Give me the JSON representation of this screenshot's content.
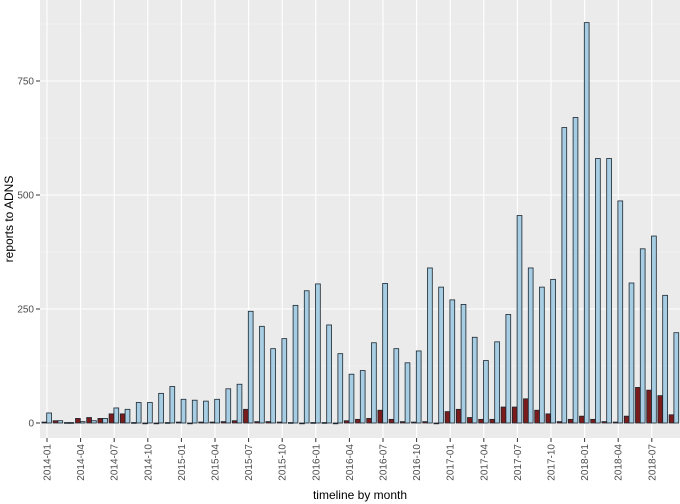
{
  "chart_data": {
    "type": "bar",
    "title": "",
    "xlabel": "timeline by month",
    "ylabel": "reports to ADNS",
    "ylim": [
      0,
      900
    ],
    "yticks": [
      0,
      250,
      500,
      750
    ],
    "grid": true,
    "legend": "none",
    "categories": [
      "2014-01",
      "2014-02",
      "2014-03",
      "2014-04",
      "2014-05",
      "2014-06",
      "2014-07",
      "2014-08",
      "2014-09",
      "2014-10",
      "2014-11",
      "2014-12",
      "2015-01",
      "2015-02",
      "2015-03",
      "2015-04",
      "2015-05",
      "2015-06",
      "2015-07",
      "2015-08",
      "2015-09",
      "2015-10",
      "2015-11",
      "2015-12",
      "2016-01",
      "2016-02",
      "2016-03",
      "2016-04",
      "2016-05",
      "2016-06",
      "2016-07",
      "2016-08",
      "2016-09",
      "2016-10",
      "2016-11",
      "2016-12",
      "2017-01",
      "2017-02",
      "2017-03",
      "2017-04",
      "2017-05",
      "2017-06",
      "2017-07",
      "2017-08",
      "2017-09",
      "2017-10",
      "2017-11",
      "2017-12",
      "2018-01",
      "2018-02",
      "2018-03",
      "2018-04",
      "2018-05",
      "2018-06",
      "2018-07",
      "2018-08",
      "2018-09"
    ],
    "xtick_labels": [
      "2014-01",
      "2014-04",
      "2014-07",
      "2014-10",
      "2015-01",
      "2015-04",
      "2015-07",
      "2015-10",
      "2016-01",
      "2016-04",
      "2016-07",
      "2016-10",
      "2017-01",
      "2017-04",
      "2017-07",
      "2017-10",
      "2018-01",
      "2018-04",
      "2018-07"
    ],
    "series": [
      {
        "name": "series-red",
        "color": "#7b1c1c",
        "values": [
          2,
          5,
          1,
          10,
          12,
          10,
          20,
          20,
          1,
          0,
          0,
          1,
          2,
          0,
          2,
          2,
          3,
          5,
          30,
          3,
          3,
          2,
          1,
          0,
          1,
          1,
          0,
          5,
          8,
          10,
          28,
          8,
          3,
          2,
          3,
          0,
          25,
          30,
          12,
          8,
          8,
          35,
          35,
          53,
          28,
          20,
          3,
          8,
          15,
          8,
          3,
          2,
          15,
          78,
          72,
          60,
          18
        ]
      },
      {
        "name": "series-blue",
        "color": "#a6cde2",
        "values": [
          22,
          5,
          1,
          3,
          5,
          10,
          33,
          30,
          45,
          45,
          65,
          80,
          52,
          50,
          48,
          52,
          75,
          85,
          245,
          212,
          163,
          185,
          258,
          290,
          305,
          215,
          152,
          107,
          115,
          176,
          306,
          163,
          132,
          158,
          340,
          298,
          270,
          260,
          188,
          137,
          178,
          238,
          455,
          340,
          298,
          315,
          648,
          670,
          878,
          580,
          580,
          487,
          307,
          382,
          410,
          280,
          198
        ]
      }
    ]
  }
}
